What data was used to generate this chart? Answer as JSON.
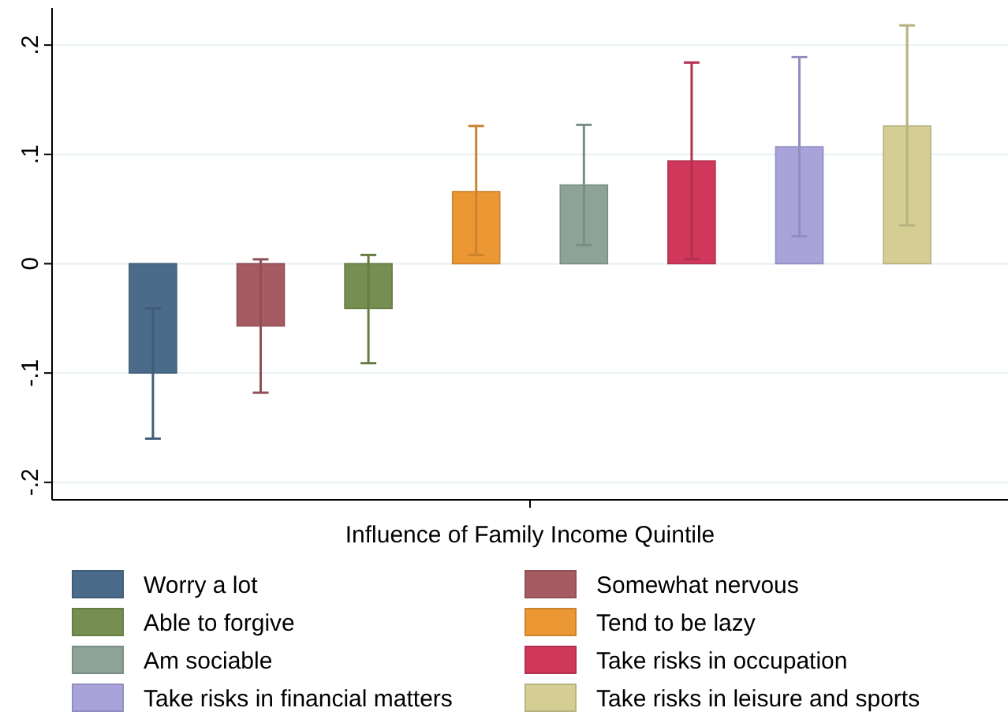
{
  "chart_data": {
    "type": "bar",
    "categories": [
      "Influence of Family Income Quintile"
    ],
    "ylim": [
      -0.216,
      0.234
    ],
    "yticks": [
      {
        "value": -0.2,
        "label": "-.2"
      },
      {
        "value": -0.1,
        "label": "-.1"
      },
      0,
      {
        "value": 0.1,
        "label": ".1"
      },
      {
        "value": 0.2,
        "label": ".2"
      }
    ],
    "grid": "y",
    "legend": "bottom",
    "series": [
      {
        "name": "Worry a lot",
        "color": "#4a6b8a",
        "values": [
          -0.1
        ],
        "errors": [
          [
            -0.16,
            -0.041
          ]
        ]
      },
      {
        "name": "Somewhat nervous",
        "color": "#a65b63",
        "values": [
          -0.057
        ],
        "errors": [
          [
            -0.118,
            0.004
          ]
        ]
      },
      {
        "name": "Able to forgive",
        "color": "#768f50",
        "values": [
          -0.041
        ],
        "errors": [
          [
            -0.091,
            0.008
          ]
        ]
      },
      {
        "name": "Tend to be lazy",
        "color": "#eb9734",
        "values": [
          0.066
        ],
        "errors": [
          [
            0.008,
            0.126
          ]
        ]
      },
      {
        "name": "Am sociable",
        "color": "#8da398",
        "values": [
          0.072
        ],
        "errors": [
          [
            0.017,
            0.127
          ]
        ]
      },
      {
        "name": "Take risks in occupation",
        "color": "#cf385b",
        "values": [
          0.094
        ],
        "errors": [
          [
            0.004,
            0.184
          ]
        ]
      },
      {
        "name": "Take risks in financial matters",
        "color": "#a8a3db",
        "values": [
          0.107
        ],
        "errors": [
          [
            0.025,
            0.189
          ]
        ]
      },
      {
        "name": "Take risks in leisure and sports",
        "color": "#d4cd94",
        "values": [
          0.126
        ],
        "errors": [
          [
            0.035,
            0.218
          ]
        ]
      }
    ]
  }
}
